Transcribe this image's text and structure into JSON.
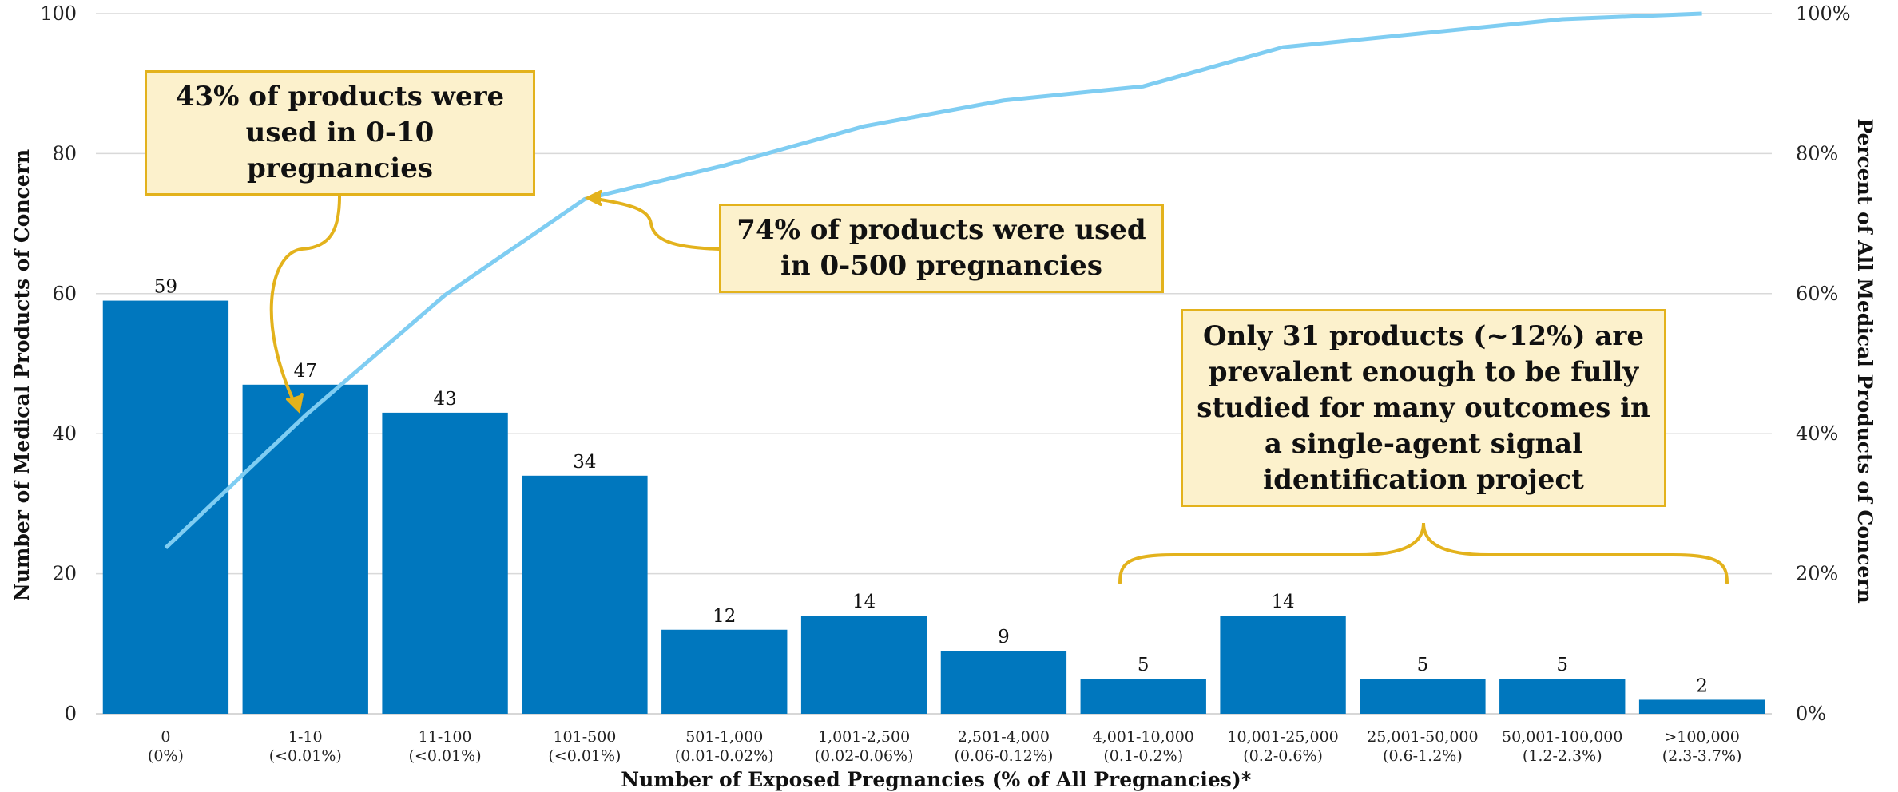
{
  "chart_data": {
    "type": "bar",
    "categories": [
      [
        "0",
        "(0%)"
      ],
      [
        "1-10",
        "(<0.01%)"
      ],
      [
        "11-100",
        "(<0.01%)"
      ],
      [
        "101-500",
        "(<0.01%)"
      ],
      [
        "501-1,000",
        "(0.01-0.02%)"
      ],
      [
        "1,001-2,500",
        "(0.02-0.06%)"
      ],
      [
        "2,501-4,000",
        "(0.06-0.12%)"
      ],
      [
        "4,001-10,000",
        "(0.1-0.2%)"
      ],
      [
        "10,001-25,000",
        "(0.2-0.6%)"
      ],
      [
        "25,001-50,000",
        "(0.6-1.2%)"
      ],
      [
        "50,001-100,000",
        "(1.2-2.3%)"
      ],
      [
        ">100,000",
        "(2.3-3.7%)"
      ]
    ],
    "series": [
      {
        "type": "bar",
        "values": [
          59,
          47,
          43,
          34,
          12,
          14,
          9,
          5,
          14,
          5,
          5,
          2
        ],
        "color": "#0077be"
      },
      {
        "type": "line",
        "axis": "right",
        "values": [
          23.7,
          42.6,
          59.8,
          73.5,
          78.3,
          83.9,
          87.6,
          89.6,
          95.2,
          97.2,
          99.2,
          100.0
        ],
        "color": "#7fcdf2"
      }
    ],
    "xlabel": "Number of Exposed Pregnancies (% of All Pregnancies)*",
    "ylabel": "Number of Medical Products of Concern",
    "y2label": "Percent of All Medical Products of Concern",
    "ylim": [
      0,
      100
    ],
    "yticks": [
      "0",
      "20",
      "40",
      "60",
      "80",
      "100"
    ],
    "y2lim": [
      0,
      100
    ],
    "y2ticks": [
      "0%",
      "20%",
      "40%",
      "60%",
      "80%",
      "100%"
    ],
    "grid": true,
    "annotations": [
      "43% of products were used in 0-10 pregnancies",
      "74% of products were used in 0-500 pregnancies",
      "Only 31 products (~12%) are prevalent enough to be fully studied for many outcomes in a single-agent signal identification project"
    ],
    "accent_color": "#e3b21c"
  }
}
